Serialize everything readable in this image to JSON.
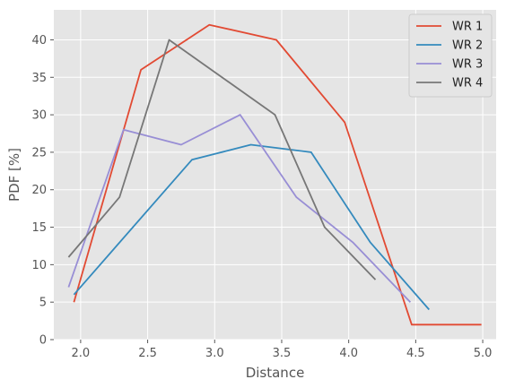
{
  "chart_data": {
    "type": "line",
    "xlabel": "Distance",
    "ylabel": "PDF [%]",
    "xlim": [
      1.8,
      5.1
    ],
    "ylim": [
      0,
      44
    ],
    "xticks": [
      2.0,
      2.5,
      3.0,
      3.5,
      4.0,
      4.5,
      5.0
    ],
    "xtick_labels": [
      "2.0",
      "2.5",
      "3.0",
      "3.5",
      "4.0",
      "4.5",
      "5.0"
    ],
    "yticks": [
      0,
      5,
      10,
      15,
      20,
      25,
      30,
      35,
      40
    ],
    "ytick_labels": [
      "0",
      "5",
      "10",
      "15",
      "20",
      "25",
      "30",
      "35",
      "40"
    ],
    "grid": true,
    "background": "#e5e5e5",
    "legend_position": "top-right",
    "series": [
      {
        "name": "WR 1",
        "color": "#e24a33",
        "x": [
          1.95,
          2.45,
          2.96,
          3.46,
          3.97,
          4.47,
          4.99
        ],
        "y": [
          5,
          36,
          42,
          40,
          29,
          2,
          2
        ]
      },
      {
        "name": "WR 2",
        "color": "#348abd",
        "x": [
          1.95,
          2.83,
          3.27,
          3.72,
          4.16,
          4.6
        ],
        "y": [
          6,
          24,
          26,
          25,
          13,
          4
        ]
      },
      {
        "name": "WR 3",
        "color": "#988ed5",
        "x": [
          1.91,
          2.32,
          2.75,
          3.19,
          3.61,
          4.03,
          4.46
        ],
        "y": [
          7,
          28,
          26,
          30,
          19,
          13,
          5
        ]
      },
      {
        "name": "WR 4",
        "color": "#777777",
        "x": [
          1.91,
          2.29,
          2.66,
          3.45,
          3.82,
          4.2
        ],
        "y": [
          11,
          19,
          40,
          30,
          15,
          8
        ]
      }
    ]
  }
}
